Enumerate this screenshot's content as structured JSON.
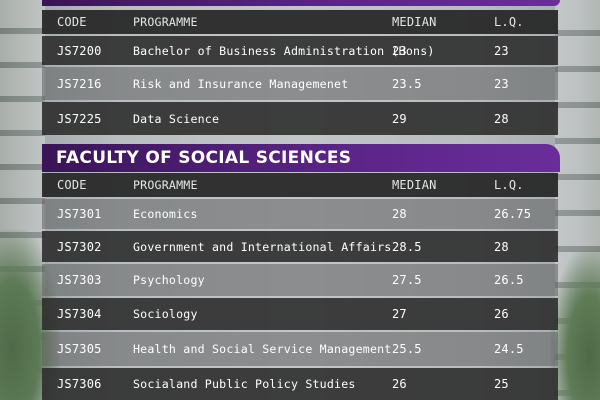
{
  "tables": [
    {
      "faculty": "",
      "headers": {
        "code": "CODE",
        "programme": "PROGRAMME",
        "median": "MEDIAN",
        "lq": "L.Q."
      },
      "rows": [
        {
          "code": "JS7200",
          "programme": "Bachelor of Business Administration (Hons)",
          "median": "23",
          "lq": "23"
        },
        {
          "code": "JS7216",
          "programme": "Risk and Insurance Managemenet",
          "median": "23.5",
          "lq": "23"
        },
        {
          "code": "JS7225",
          "programme": "Data Science",
          "median": "29",
          "lq": "28"
        }
      ]
    },
    {
      "faculty": "FACULTY OF SOCIAL SCIENCES",
      "headers": {
        "code": "CODE",
        "programme": "PROGRAMME",
        "median": "MEDIAN",
        "lq": "L.Q."
      },
      "rows": [
        {
          "code": "JS7301",
          "programme": "Economics",
          "median": "28",
          "lq": "26.75"
        },
        {
          "code": "JS7302",
          "programme": "Government and International Affairs",
          "median": "28.5",
          "lq": "28"
        },
        {
          "code": "JS7303",
          "programme": "Psychology",
          "median": "27.5",
          "lq": "26.5"
        },
        {
          "code": "JS7304",
          "programme": "Sociology",
          "median": "27",
          "lq": "26"
        },
        {
          "code": "JS7305",
          "programme": "Health and Social Service Management",
          "median": "25.5",
          "lq": "24.5"
        },
        {
          "code": "JS7306",
          "programme": "Socialand Public Policy Studies",
          "median": "26",
          "lq": "25"
        }
      ]
    }
  ]
}
